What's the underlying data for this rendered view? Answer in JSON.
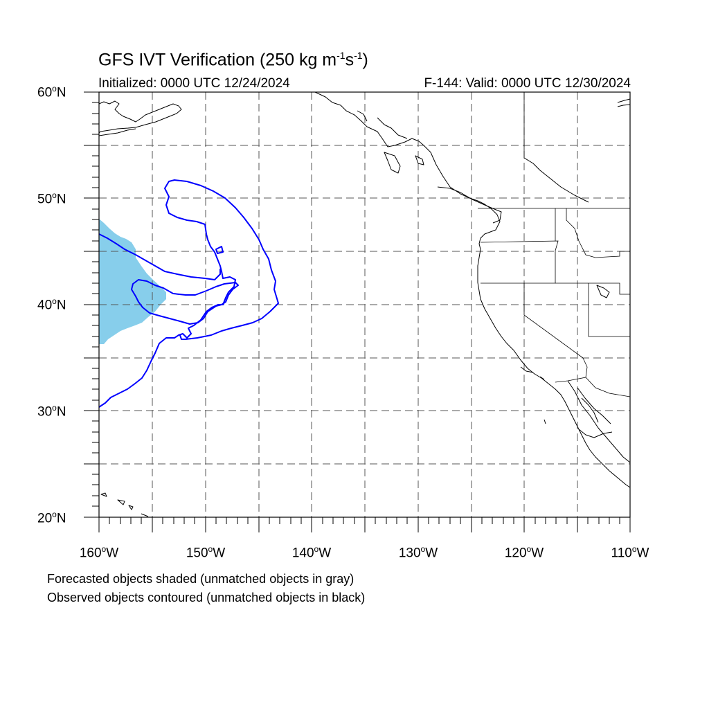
{
  "title": {
    "main": "GFS IVT Verification (250 kg m",
    "sup1": "-1",
    "mid": "s",
    "sup2": "-1",
    "end": ")"
  },
  "subtitle_left": "Initialized: 0000 UTC 12/24/2024",
  "subtitle_right": "F-144: Valid: 0000 UTC 12/30/2024",
  "map": {
    "lon_range": [
      -160,
      -110
    ],
    "lat_range": [
      20,
      60
    ],
    "grid": true,
    "lat_labels": [
      {
        "deg": "60",
        "hem": "N"
      },
      {
        "deg": "50",
        "hem": "N"
      },
      {
        "deg": "40",
        "hem": "N"
      },
      {
        "deg": "30",
        "hem": "N"
      },
      {
        "deg": "20",
        "hem": "N"
      }
    ],
    "lon_labels": [
      {
        "deg": "160",
        "hem": "W"
      },
      {
        "deg": "150",
        "hem": "W"
      },
      {
        "deg": "140",
        "hem": "W"
      },
      {
        "deg": "130",
        "hem": "W"
      },
      {
        "deg": "120",
        "hem": "W"
      },
      {
        "deg": "110",
        "hem": "W"
      }
    ],
    "colors": {
      "forecast_fill": "#87ceeb",
      "observed_contour": "#0000ff",
      "coastline": "#000000",
      "grid": "#555555"
    }
  },
  "legend_notes": [
    "Forecasted objects shaded (unmatched objects in gray)",
    "Observed objects contoured (unmatched objects in black)"
  ]
}
